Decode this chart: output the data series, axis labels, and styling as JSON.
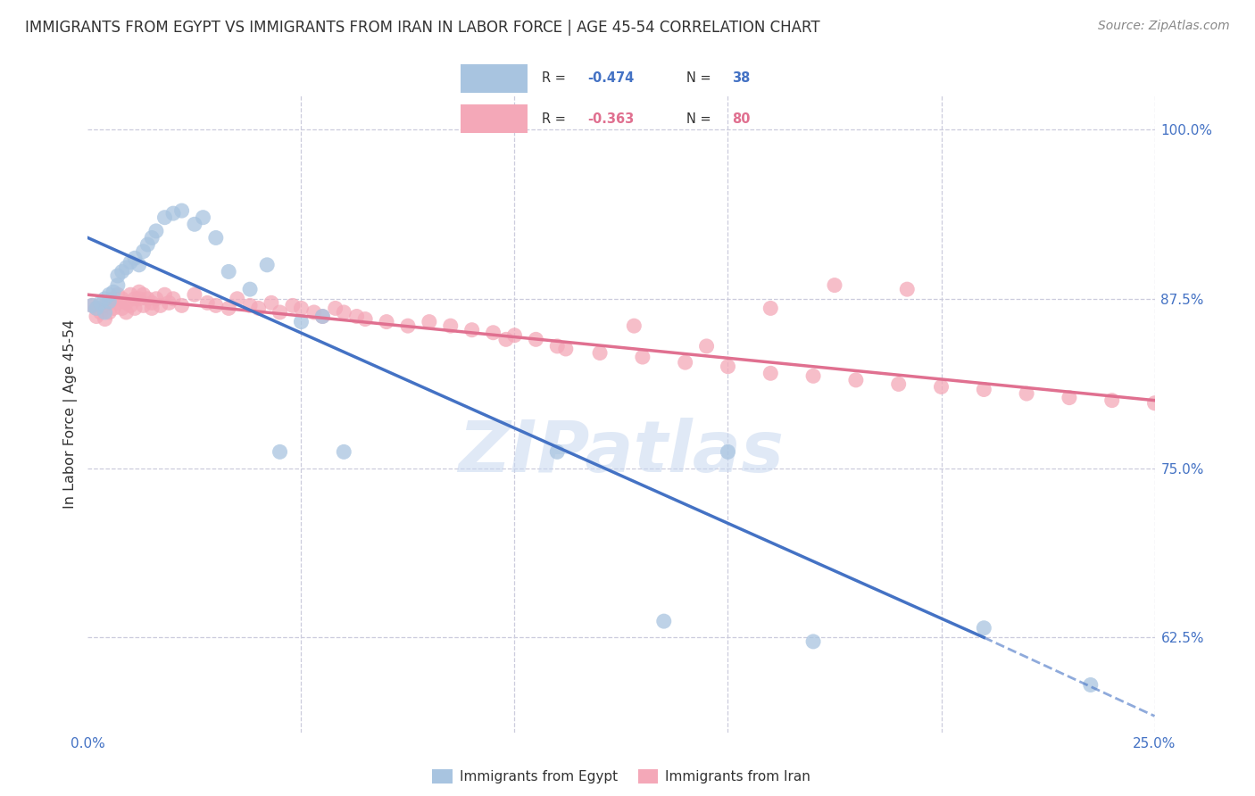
{
  "title": "IMMIGRANTS FROM EGYPT VS IMMIGRANTS FROM IRAN IN LABOR FORCE | AGE 45-54 CORRELATION CHART",
  "source": "Source: ZipAtlas.com",
  "ylabel": "In Labor Force | Age 45-54",
  "xlim": [
    0.0,
    0.25
  ],
  "ylim": [
    0.555,
    1.025
  ],
  "xticks": [
    0.0,
    0.05,
    0.1,
    0.15,
    0.2,
    0.25
  ],
  "xticklabels": [
    "0.0%",
    "",
    "",
    "",
    "",
    "25.0%"
  ],
  "yticks": [
    0.625,
    0.75,
    0.875,
    1.0
  ],
  "yticklabels": [
    "62.5%",
    "75.0%",
    "87.5%",
    "100.0%"
  ],
  "egypt_color": "#a8c4e0",
  "iran_color": "#f4a8b8",
  "egypt_line_color": "#4472c4",
  "iran_line_color": "#e07090",
  "watermark": "ZIPatlas",
  "background_color": "#ffffff",
  "grid_color": "#ccccdd",
  "tick_color": "#4472c4",
  "egypt_scatter_x": [
    0.001,
    0.002,
    0.003,
    0.004,
    0.004,
    0.005,
    0.005,
    0.006,
    0.007,
    0.007,
    0.008,
    0.009,
    0.01,
    0.011,
    0.012,
    0.013,
    0.014,
    0.015,
    0.016,
    0.018,
    0.02,
    0.022,
    0.025,
    0.027,
    0.03,
    0.033,
    0.038,
    0.042,
    0.045,
    0.05,
    0.055,
    0.06,
    0.11,
    0.135,
    0.15,
    0.17,
    0.21,
    0.235
  ],
  "egypt_scatter_y": [
    0.87,
    0.868,
    0.872,
    0.875,
    0.865,
    0.878,
    0.873,
    0.88,
    0.885,
    0.892,
    0.895,
    0.898,
    0.902,
    0.905,
    0.9,
    0.91,
    0.915,
    0.92,
    0.925,
    0.935,
    0.938,
    0.94,
    0.93,
    0.935,
    0.92,
    0.895,
    0.882,
    0.9,
    0.762,
    0.858,
    0.862,
    0.762,
    0.762,
    0.637,
    0.762,
    0.622,
    0.632,
    0.59
  ],
  "iran_scatter_x": [
    0.001,
    0.002,
    0.002,
    0.003,
    0.004,
    0.004,
    0.005,
    0.005,
    0.006,
    0.006,
    0.007,
    0.007,
    0.008,
    0.008,
    0.009,
    0.009,
    0.01,
    0.01,
    0.011,
    0.011,
    0.012,
    0.012,
    0.013,
    0.013,
    0.014,
    0.015,
    0.015,
    0.016,
    0.017,
    0.018,
    0.019,
    0.02,
    0.022,
    0.025,
    0.028,
    0.03,
    0.033,
    0.035,
    0.038,
    0.04,
    0.043,
    0.045,
    0.048,
    0.05,
    0.053,
    0.055,
    0.058,
    0.06,
    0.063,
    0.065,
    0.07,
    0.075,
    0.08,
    0.085,
    0.09,
    0.095,
    0.1,
    0.105,
    0.11,
    0.12,
    0.13,
    0.14,
    0.15,
    0.16,
    0.17,
    0.18,
    0.19,
    0.2,
    0.21,
    0.22,
    0.23,
    0.24,
    0.25,
    0.192,
    0.175,
    0.16,
    0.145,
    0.128,
    0.112,
    0.098
  ],
  "iran_scatter_y": [
    0.87,
    0.862,
    0.868,
    0.865,
    0.87,
    0.86,
    0.872,
    0.865,
    0.868,
    0.875,
    0.872,
    0.878,
    0.875,
    0.868,
    0.872,
    0.865,
    0.878,
    0.87,
    0.875,
    0.868,
    0.88,
    0.875,
    0.878,
    0.87,
    0.875,
    0.872,
    0.868,
    0.875,
    0.87,
    0.878,
    0.872,
    0.875,
    0.87,
    0.878,
    0.872,
    0.87,
    0.868,
    0.875,
    0.87,
    0.868,
    0.872,
    0.865,
    0.87,
    0.868,
    0.865,
    0.862,
    0.868,
    0.865,
    0.862,
    0.86,
    0.858,
    0.855,
    0.858,
    0.855,
    0.852,
    0.85,
    0.848,
    0.845,
    0.84,
    0.835,
    0.832,
    0.828,
    0.825,
    0.82,
    0.818,
    0.815,
    0.812,
    0.81,
    0.808,
    0.805,
    0.802,
    0.8,
    0.798,
    0.882,
    0.885,
    0.868,
    0.84,
    0.855,
    0.838,
    0.845
  ],
  "egypt_line_x0": 0.0,
  "egypt_line_y0": 0.92,
  "egypt_line_x1": 0.21,
  "egypt_line_y1": 0.625,
  "egypt_line_dash_x1": 0.25,
  "egypt_line_dash_y1": 0.567,
  "iran_line_x0": 0.0,
  "iran_line_y0": 0.878,
  "iran_line_x1": 0.25,
  "iran_line_y1": 0.8
}
